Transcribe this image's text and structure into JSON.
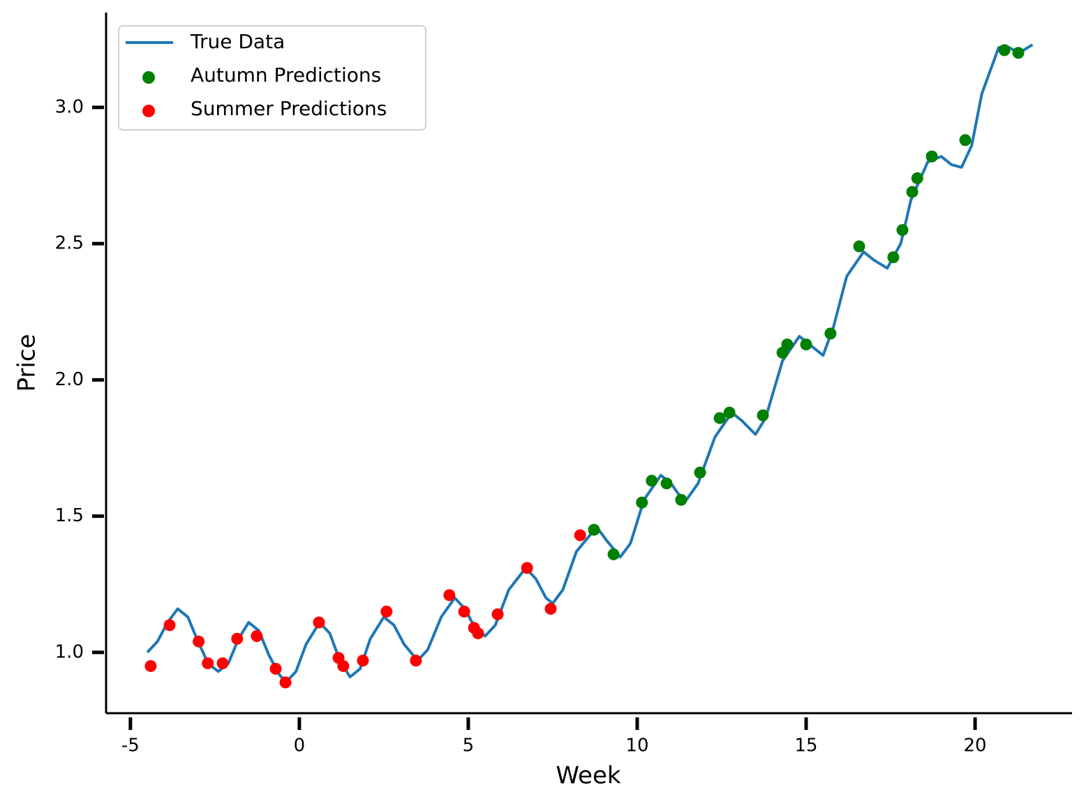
{
  "chart_data": {
    "type": "line",
    "xlabel": "Week",
    "ylabel": "Price",
    "xlim": [
      -5.72,
      22.87
    ],
    "ylim": [
      0.777,
      3.348
    ],
    "xticks": [
      -5,
      0,
      5,
      10,
      15,
      20
    ],
    "yticks": [
      {
        "value": 1,
        "label": "1.0"
      },
      {
        "value": 1.5,
        "label": "1.5"
      },
      {
        "value": 2,
        "label": "2.0"
      },
      {
        "value": 2.5,
        "label": "2.5"
      },
      {
        "value": 3,
        "label": "3.0"
      }
    ],
    "legend": "upper left",
    "series": [
      {
        "name": "True Data",
        "type": "line",
        "color": "#1f77b4",
        "x": [
          -4.5,
          -4.2,
          -3.9,
          -3.6,
          -3.3,
          -3.0,
          -2.7,
          -2.4,
          -2.1,
          -1.8,
          -1.5,
          -1.2,
          -0.9,
          -0.6,
          -0.4,
          -0.1,
          0.2,
          0.6,
          0.9,
          1.2,
          1.5,
          1.8,
          2.1,
          2.5,
          2.8,
          3.1,
          3.5,
          3.8,
          4.2,
          4.6,
          4.9,
          5.2,
          5.5,
          5.8,
          6.2,
          6.7,
          7.0,
          7.3,
          7.5,
          7.8,
          8.2,
          8.8,
          9.1,
          9.5,
          9.8,
          10.2,
          10.7,
          11.0,
          11.4,
          11.8,
          12.3,
          12.8,
          13.1,
          13.5,
          13.8,
          14.3,
          14.8,
          15.1,
          15.5,
          15.8,
          16.2,
          16.7,
          17.0,
          17.4,
          17.8,
          18.1,
          18.6,
          19.0,
          19.3,
          19.6,
          19.9,
          20.2,
          20.7,
          21.0,
          21.3,
          21.7
        ],
        "values": [
          1.0,
          1.04,
          1.11,
          1.16,
          1.13,
          1.04,
          0.96,
          0.93,
          0.96,
          1.05,
          1.11,
          1.08,
          0.99,
          0.92,
          0.89,
          0.93,
          1.03,
          1.11,
          1.07,
          0.97,
          0.91,
          0.94,
          1.05,
          1.13,
          1.1,
          1.03,
          0.97,
          1.01,
          1.13,
          1.2,
          1.16,
          1.09,
          1.06,
          1.1,
          1.23,
          1.31,
          1.27,
          1.2,
          1.18,
          1.23,
          1.37,
          1.46,
          1.41,
          1.35,
          1.4,
          1.56,
          1.65,
          1.62,
          1.55,
          1.62,
          1.79,
          1.88,
          1.85,
          1.8,
          1.86,
          2.07,
          2.16,
          2.13,
          2.09,
          2.19,
          2.38,
          2.47,
          2.44,
          2.41,
          2.5,
          2.66,
          2.8,
          2.82,
          2.79,
          2.78,
          2.86,
          3.05,
          3.22,
          3.22,
          3.2,
          3.23
        ]
      },
      {
        "name": "Autumn Predictions",
        "type": "scatter",
        "color": "#008000",
        "x": [
          8.72,
          9.3,
          10.14,
          10.43,
          10.87,
          11.3,
          11.86,
          12.44,
          12.73,
          13.72,
          14.3,
          14.44,
          15.0,
          15.72,
          16.57,
          17.58,
          17.85,
          18.14,
          18.29,
          18.72,
          19.71,
          20.87,
          21.28
        ],
        "values": [
          1.45,
          1.36,
          1.55,
          1.63,
          1.62,
          1.56,
          1.66,
          1.86,
          1.88,
          1.87,
          2.1,
          2.13,
          2.13,
          2.17,
          2.49,
          2.45,
          2.55,
          2.69,
          2.74,
          2.82,
          2.88,
          3.21,
          3.2
        ]
      },
      {
        "name": "Summer Predictions",
        "type": "scatter",
        "color": "#ff0000",
        "x": [
          -4.4,
          -3.84,
          -2.98,
          -2.71,
          -2.27,
          -1.84,
          -1.26,
          -0.7,
          -0.41,
          0.58,
          1.16,
          1.3,
          1.88,
          2.58,
          3.45,
          4.44,
          4.88,
          5.17,
          5.29,
          5.87,
          6.74,
          7.44,
          8.31
        ],
        "values": [
          0.95,
          1.1,
          1.04,
          0.96,
          0.96,
          1.05,
          1.06,
          0.94,
          0.89,
          1.11,
          0.98,
          0.95,
          0.97,
          1.15,
          0.97,
          1.21,
          1.15,
          1.09,
          1.07,
          1.14,
          1.31,
          1.16,
          1.43
        ]
      }
    ]
  }
}
